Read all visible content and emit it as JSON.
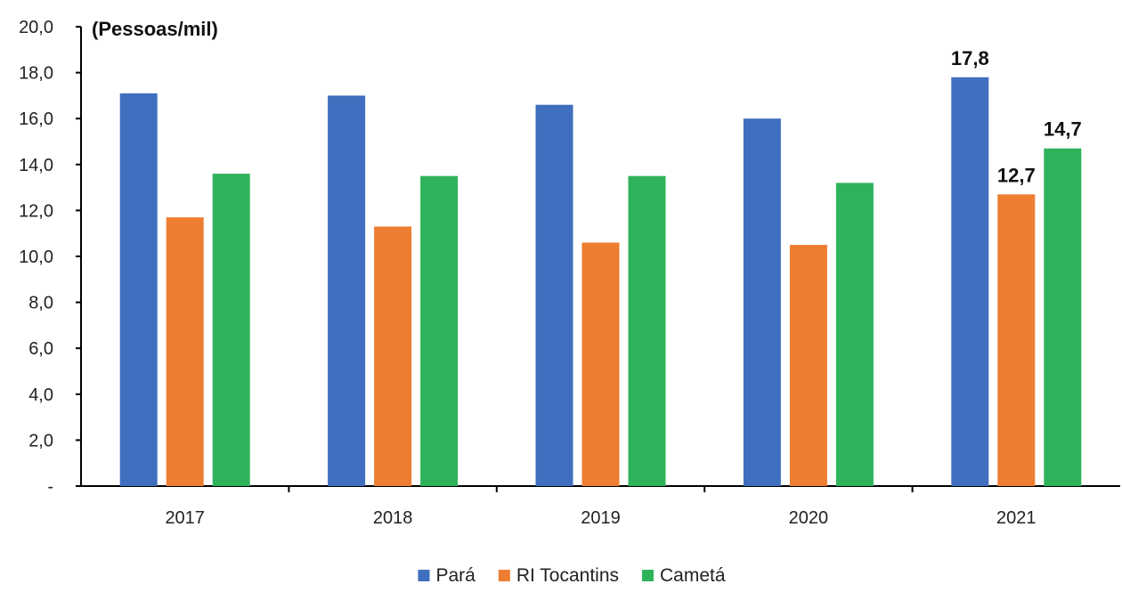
{
  "chart_data": {
    "type": "bar",
    "unit_label": "(Pessoas/mil)",
    "categories": [
      "2017",
      "2018",
      "2019",
      "2020",
      "2021"
    ],
    "series": [
      {
        "name": "Pará",
        "color": "#3f6fbe",
        "values": [
          17.1,
          17.0,
          16.6,
          16.0,
          17.8
        ]
      },
      {
        "name": "RI Tocantins",
        "color": "#ed7d31",
        "values": [
          11.7,
          11.3,
          10.6,
          10.5,
          12.7
        ]
      },
      {
        "name": "Cametá",
        "color": "#2eb35a",
        "values": [
          13.6,
          13.5,
          13.5,
          13.2,
          14.7
        ]
      }
    ],
    "data_labels": [
      {
        "series": 0,
        "category": 4,
        "text": "17,8"
      },
      {
        "series": 1,
        "category": 4,
        "text": "12,7"
      },
      {
        "series": 2,
        "category": 4,
        "text": "14,7"
      }
    ],
    "ylim": [
      0,
      20
    ],
    "yticks": [
      0,
      2,
      4,
      6,
      8,
      10,
      12,
      14,
      16,
      18,
      20
    ],
    "ytick_labels": [
      "-",
      "2,0",
      "4,0",
      "6,0",
      "8,0",
      "10,0",
      "12,0",
      "14,0",
      "16,0",
      "18,0",
      "20,0"
    ],
    "grid": false,
    "legend_position": "bottom"
  }
}
